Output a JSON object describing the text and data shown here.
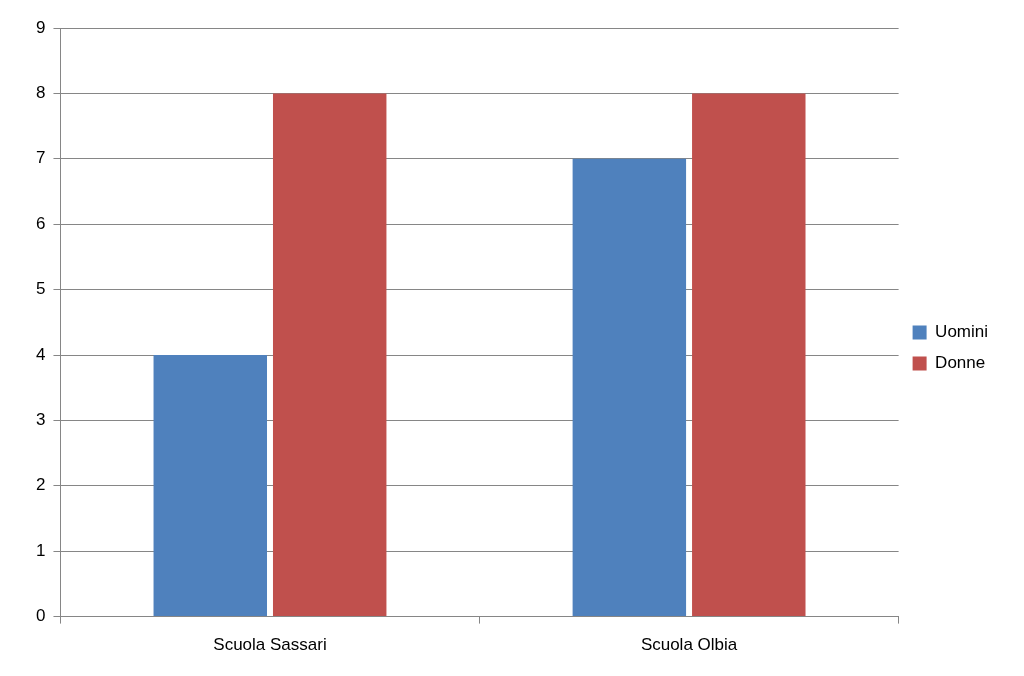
{
  "chart_data": {
    "type": "bar",
    "categories": [
      "Scuola Sassari",
      "Scuola Olbia"
    ],
    "series": [
      {
        "name": "Uomini",
        "color": "#4f81bd",
        "values": [
          4,
          7
        ]
      },
      {
        "name": "Donne",
        "color": "#c0504d",
        "values": [
          8,
          8
        ]
      }
    ],
    "ylim": [
      0,
      9
    ],
    "yticks": [
      0,
      1,
      2,
      3,
      4,
      5,
      6,
      7,
      8,
      9
    ],
    "grid": "y",
    "legend": "right"
  }
}
